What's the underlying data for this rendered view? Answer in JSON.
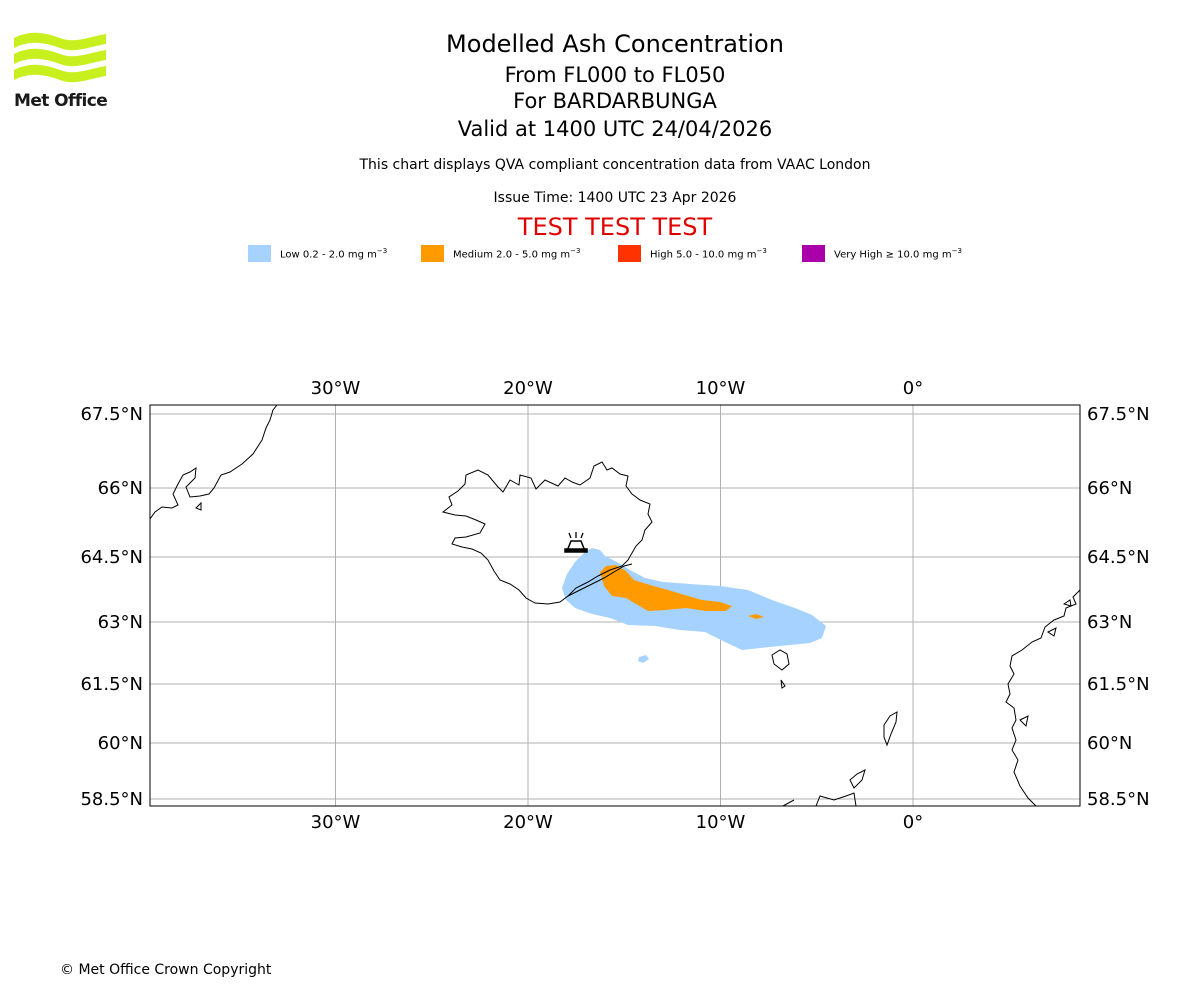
{
  "header": {
    "logo_text": "Met Office",
    "title": "Modelled Ash Concentration",
    "levels": "From FL000 to FL050",
    "volcano": "For BARDARBUNGA",
    "valid": "Valid at 1400 UTC 24/04/2026",
    "description": "This chart displays QVA compliant concentration data from VAAC London",
    "issue": "Issue Time: 1400 UTC 23 Apr 2026",
    "test_banner": "TEST TEST TEST"
  },
  "legend": [
    {
      "label": "Low 0.2 - 2.0 mg m",
      "exp": "−3",
      "color": "#a6d2ff"
    },
    {
      "label": "Medium 2.0 - 5.0 mg m",
      "exp": "−3",
      "color": "#ff9b00"
    },
    {
      "label": "High 5.0 - 10.0 mg m",
      "exp": "−3",
      "color": "#ff3200"
    },
    {
      "label": "Very High  ≥  10.0 mg m",
      "exp": "−3",
      "color": "#aa00aa"
    }
  ],
  "map": {
    "lon_ticks": [
      {
        "lon": -30,
        "label": "30°W"
      },
      {
        "lon": -20,
        "label": "20°W"
      },
      {
        "lon": -10,
        "label": "10°W"
      },
      {
        "lon": 0,
        "label": "0°"
      }
    ],
    "lat_ticks": [
      {
        "lat": 67.5,
        "label": "67.5°N"
      },
      {
        "lat": 66,
        "label": "66°N"
      },
      {
        "lat": 64.5,
        "label": "64.5°N"
      },
      {
        "lat": 63,
        "label": "63°N"
      },
      {
        "lat": 61.5,
        "label": "61.5°N"
      },
      {
        "lat": 60,
        "label": "60°N"
      },
      {
        "lat": 58.5,
        "label": "58.5°N"
      }
    ],
    "gridline_color": "#b0b0b0",
    "coast_color": "#000000"
  },
  "footer": "© Met Office Crown Copyright"
}
